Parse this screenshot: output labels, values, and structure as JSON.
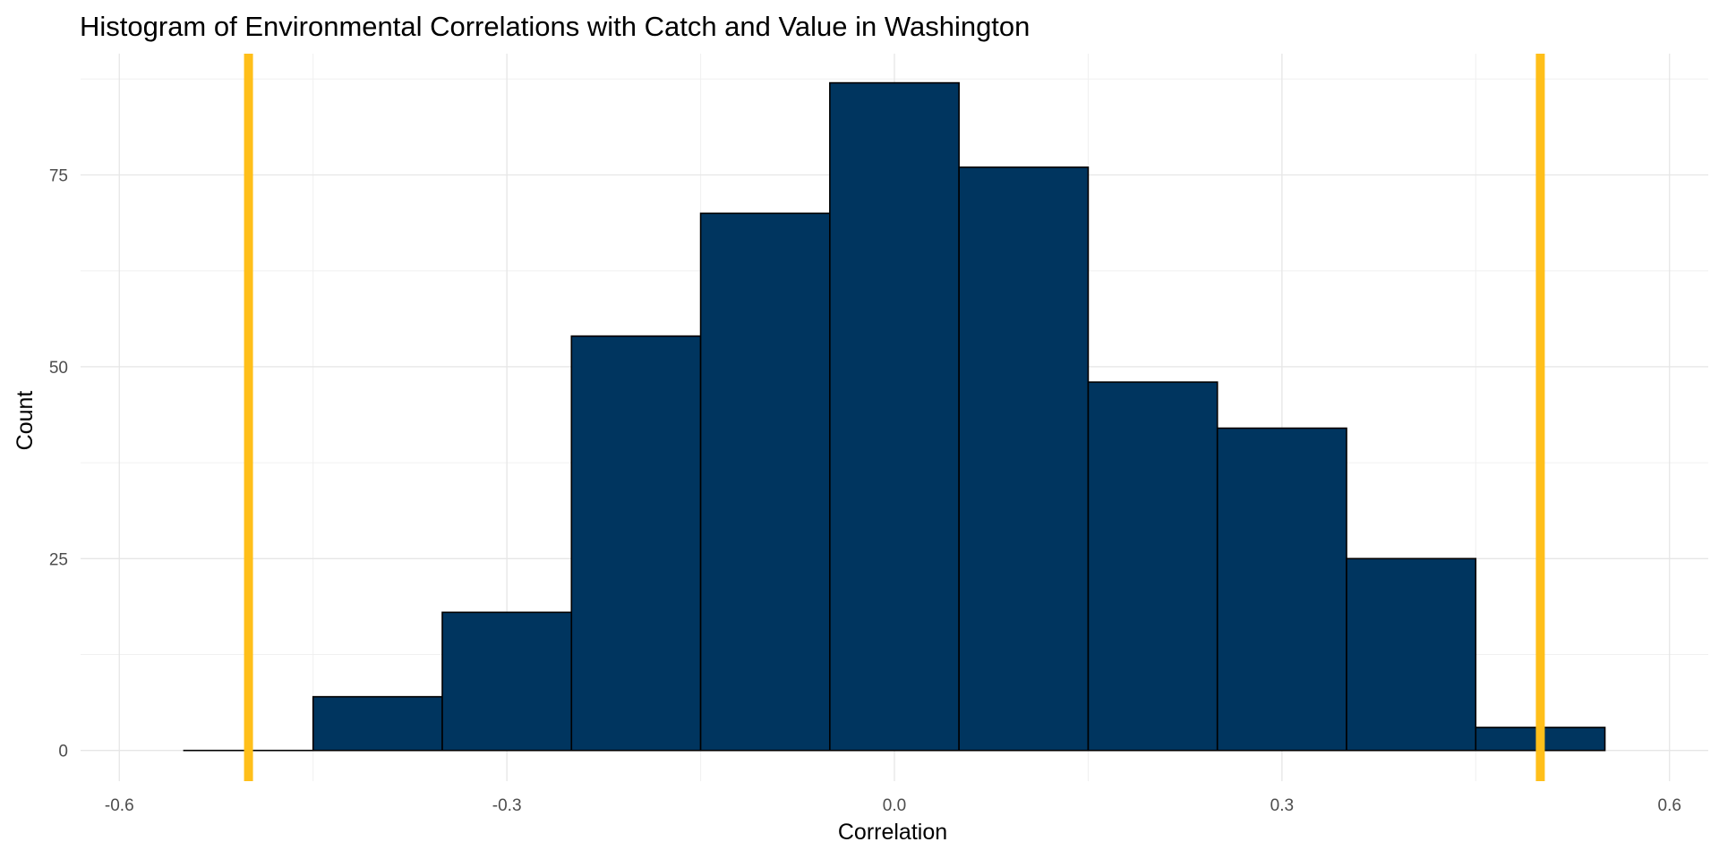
{
  "chart_data": {
    "type": "bar",
    "title": "Histogram of Environmental Correlations with Catch and Value in Washington",
    "xlabel": "Correlation",
    "ylabel": "Count",
    "xlim": [
      -0.6,
      0.6
    ],
    "ylim": [
      0,
      87
    ],
    "x_ticks": [
      "-0.6",
      "-0.3",
      "0.0",
      "0.3",
      "0.6"
    ],
    "x_tick_values": [
      -0.6,
      -0.3,
      0.0,
      0.3,
      0.6
    ],
    "y_ticks": [
      "0",
      "25",
      "50",
      "75"
    ],
    "y_tick_values": [
      0,
      25,
      50,
      75
    ],
    "bin_width": 0.1,
    "bins": [
      {
        "x_start": -0.55,
        "x_end": -0.45,
        "count": 0
      },
      {
        "x_start": -0.45,
        "x_end": -0.35,
        "count": 7
      },
      {
        "x_start": -0.35,
        "x_end": -0.25,
        "count": 18
      },
      {
        "x_start": -0.25,
        "x_end": -0.15,
        "count": 54
      },
      {
        "x_start": -0.15,
        "x_end": -0.05,
        "count": 70
      },
      {
        "x_start": -0.05,
        "x_end": 0.05,
        "count": 87
      },
      {
        "x_start": 0.05,
        "x_end": 0.15,
        "count": 76
      },
      {
        "x_start": 0.15,
        "x_end": 0.25,
        "count": 48
      },
      {
        "x_start": 0.25,
        "x_end": 0.35,
        "count": 42
      },
      {
        "x_start": 0.35,
        "x_end": 0.45,
        "count": 25
      },
      {
        "x_start": 0.45,
        "x_end": 0.55,
        "count": 3
      }
    ],
    "reference_lines": [
      {
        "x": -0.5,
        "color": "#FFBF1A"
      },
      {
        "x": 0.5,
        "color": "#FFBF1A"
      }
    ],
    "bar_color": "#00355F",
    "grid": true,
    "legend": "none"
  }
}
